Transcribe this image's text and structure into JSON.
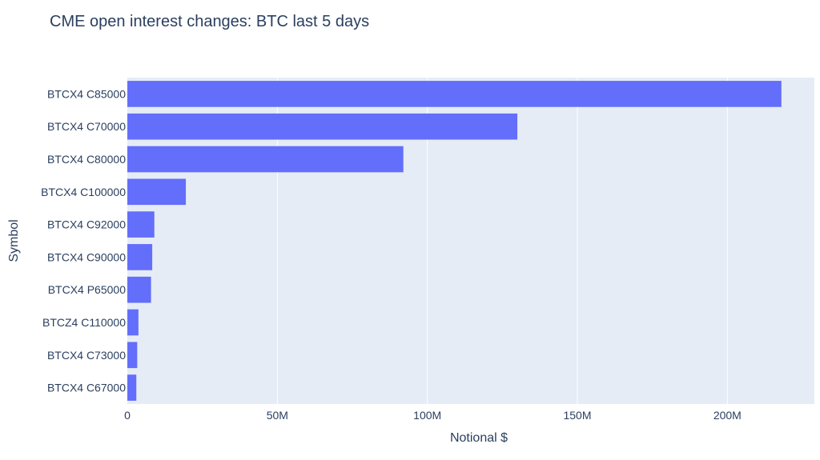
{
  "chart_data": {
    "type": "bar",
    "orientation": "horizontal",
    "title": "CME open interest changes: BTC last 5 days",
    "xlabel": "Notional $",
    "ylabel": "Symbol",
    "xlim": [
      0,
      229000000
    ],
    "grid": true,
    "bar_color": "#636efa",
    "plot_bg": "#e5ecf6",
    "categories": [
      "BTCX4 C85000",
      "BTCX4 C70000",
      "BTCX4 C80000",
      "BTCX4 C100000",
      "BTCX4 C92000",
      "BTCX4 C90000",
      "BTCX4 P65000",
      "BTCZ4 C110000",
      "BTCX4 C73000",
      "BTCX4 C67000"
    ],
    "values": [
      218000000,
      130000000,
      92000000,
      19500000,
      9000000,
      8300000,
      7900000,
      3700000,
      3300000,
      3000000
    ],
    "x_ticks": [
      0,
      50000000,
      100000000,
      150000000,
      200000000
    ],
    "x_tick_labels": [
      "0",
      "50M",
      "100M",
      "150M",
      "200M"
    ]
  }
}
